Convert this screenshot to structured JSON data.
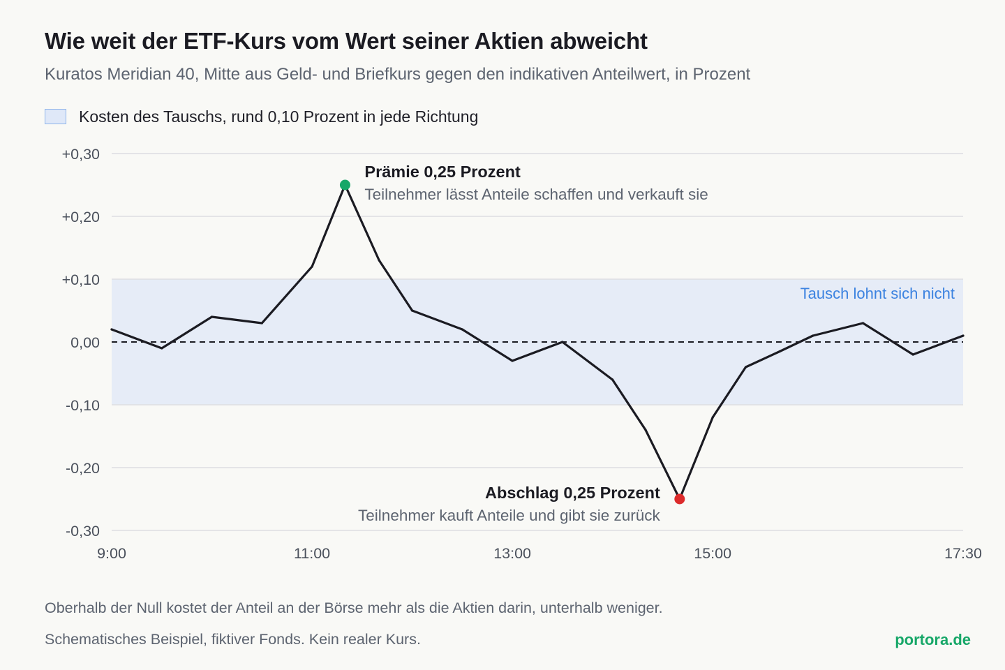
{
  "title": "Wie weit der ETF-Kurs vom Wert seiner Aktien abweicht",
  "subtitle": "Kuratos Meridian 40, Mitte aus Geld- und Briefkurs gegen den indikativen Anteilwert, in Prozent",
  "legend": {
    "band_label": "Kosten des Tauschs, rund 0,10 Prozent in jede Richtung",
    "band_color": "#e6ecf7",
    "band_border_color": "#8fb4ea"
  },
  "colors": {
    "line": "#1b1b22",
    "grid": "#dedee2",
    "premium_dot": "#17a768",
    "discount_dot": "#dc2b2b",
    "band_text": "#3b82e0",
    "axis_text": "#4b515c",
    "brand": "#17a768"
  },
  "chart_data": {
    "type": "line",
    "title": "Wie weit der ETF-Kurs vom Wert seiner Aktien abweicht",
    "subtitle": "Kuratos Meridian 40, Mitte aus Geld- und Briefkurs gegen den indikativen Anteilwert, in Prozent",
    "x_ticks": [
      "9:00",
      "11:00",
      "13:00",
      "15:00",
      "17:30"
    ],
    "x_tick_hours": [
      9,
      11,
      13,
      15,
      17.5
    ],
    "xlim_hours": [
      9,
      17.5
    ],
    "y_ticks": [
      0.3,
      0.2,
      0.1,
      0,
      -0.1,
      -0.2,
      -0.3
    ],
    "y_tick_labels": [
      "+0,30",
      "+0,20",
      "+0,10",
      "0,00",
      "-0,10",
      "-0,20",
      "-0,30"
    ],
    "ylim": [
      -0.3,
      0.3
    ],
    "grid": true,
    "zero_line": "dashed",
    "band": {
      "from": -0.1,
      "to": 0.1,
      "label": "Tausch lohnt sich nicht"
    },
    "series": [
      {
        "x_hours": [
          9.0,
          9.5,
          10.0,
          10.5,
          11.0,
          11.33,
          11.67,
          12.0,
          12.5,
          13.0,
          13.5,
          14.0,
          14.33,
          14.67,
          15.0,
          15.33,
          15.67,
          16.0,
          16.5,
          17.0,
          17.5
        ],
        "x_labels": [
          "9:00",
          "9:30",
          "10:00",
          "10:30",
          "11:00",
          "11:20",
          "11:40",
          "12:00",
          "12:30",
          "13:00",
          "13:30",
          "14:00",
          "14:20",
          "14:40",
          "15:00",
          "15:20",
          "15:40",
          "16:00",
          "16:30",
          "17:00",
          "17:30"
        ],
        "values": [
          0.02,
          -0.01,
          0.04,
          0.03,
          0.12,
          0.25,
          0.13,
          0.05,
          0.02,
          -0.03,
          0.0,
          -0.06,
          -0.14,
          -0.25,
          -0.12,
          -0.04,
          -0.015,
          0.01,
          0.03,
          -0.02,
          0.01
        ]
      }
    ],
    "annotations": [
      {
        "kind": "premium",
        "x_hours": 11.33,
        "value": 0.25,
        "title": "Prämie 0,25 Prozent",
        "text": "Teilnehmer lässt Anteile schaffen und verkauft sie"
      },
      {
        "kind": "discount",
        "x_hours": 14.67,
        "value": -0.25,
        "title": "Abschlag 0,25 Prozent",
        "text": "Teilnehmer kauft Anteile und gibt sie zurück"
      }
    ]
  },
  "footnotes": {
    "explanation": "Oberhalb der Null kostet der Anteil an der Börse mehr als die Aktien darin, unterhalb weniger.",
    "disclaimer": "Schematisches Beispiel, fiktiver Fonds. Kein realer Kurs."
  },
  "brand": "portora.de"
}
